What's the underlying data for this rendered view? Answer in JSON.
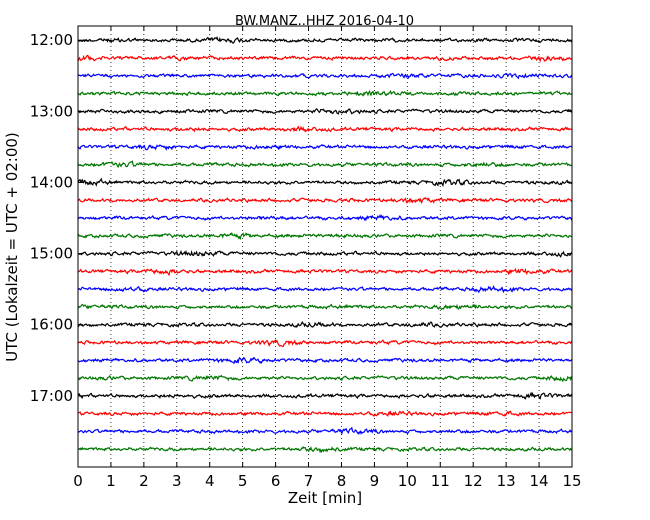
{
  "chart_data": {
    "type": "line",
    "title": "BW.MANZ..HHZ 2016-04-10",
    "xlabel": "Zeit  [min]",
    "ylabel": "UTC (Lokalzeit = UTC + 02:00)",
    "xlim": [
      0,
      15
    ],
    "xticks": [
      0,
      1,
      2,
      3,
      4,
      5,
      6,
      7,
      8,
      9,
      10,
      11,
      12,
      13,
      14,
      15
    ],
    "xtick_labels": [
      "0",
      "1",
      "2",
      "3",
      "4",
      "5",
      "6",
      "7",
      "8",
      "9",
      "10",
      "11",
      "12",
      "13",
      "14",
      "15"
    ],
    "ylim": [
      "11:48",
      "18:00"
    ],
    "yticks": [
      "12:00",
      "13:00",
      "14:00",
      "15:00",
      "16:00",
      "17:00"
    ],
    "ytick_labels": [
      "12:00",
      "13:00",
      "14:00",
      "15:00",
      "16:00",
      "17:00"
    ],
    "grid": "vertical dotted",
    "trace_interval_minutes": 15,
    "color_cycle": [
      "#000000",
      "#ff0000",
      "#0000ff",
      "#007700"
    ],
    "traces": [
      {
        "start": "12:00",
        "color": "#000000"
      },
      {
        "start": "12:15",
        "color": "#ff0000"
      },
      {
        "start": "12:30",
        "color": "#0000ff"
      },
      {
        "start": "12:45",
        "color": "#007700"
      },
      {
        "start": "13:00",
        "color": "#000000"
      },
      {
        "start": "13:15",
        "color": "#ff0000"
      },
      {
        "start": "13:30",
        "color": "#0000ff"
      },
      {
        "start": "13:45",
        "color": "#007700"
      },
      {
        "start": "14:00",
        "color": "#000000"
      },
      {
        "start": "14:15",
        "color": "#ff0000"
      },
      {
        "start": "14:30",
        "color": "#0000ff"
      },
      {
        "start": "14:45",
        "color": "#007700"
      },
      {
        "start": "15:00",
        "color": "#000000"
      },
      {
        "start": "15:15",
        "color": "#ff0000"
      },
      {
        "start": "15:30",
        "color": "#0000ff"
      },
      {
        "start": "15:45",
        "color": "#007700"
      },
      {
        "start": "16:00",
        "color": "#000000"
      },
      {
        "start": "16:15",
        "color": "#ff0000"
      },
      {
        "start": "16:30",
        "color": "#0000ff"
      },
      {
        "start": "16:45",
        "color": "#007700"
      },
      {
        "start": "17:00",
        "color": "#000000"
      },
      {
        "start": "17:15",
        "color": "#ff0000"
      },
      {
        "start": "17:30",
        "color": "#0000ff"
      },
      {
        "start": "17:45",
        "color": "#007700"
      }
    ]
  }
}
